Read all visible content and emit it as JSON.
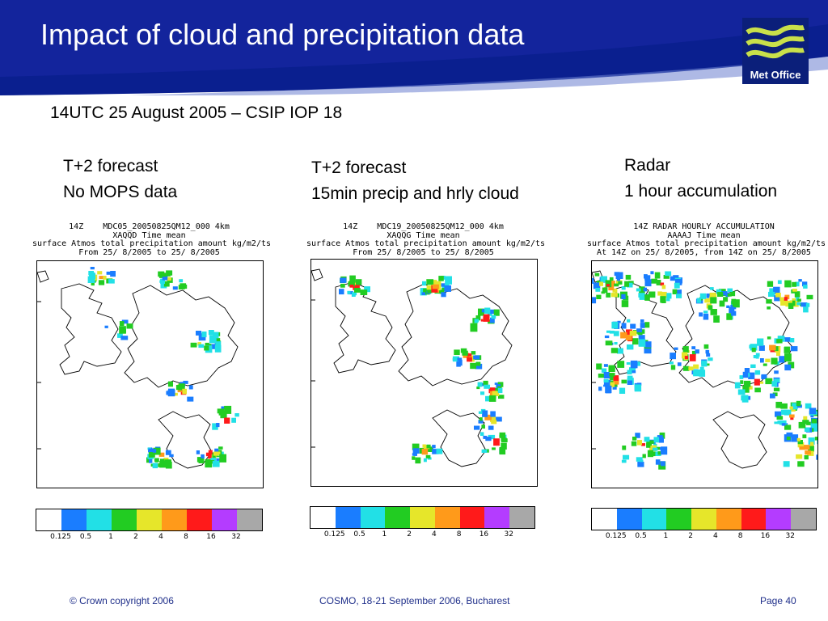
{
  "slide": {
    "title": "Impact of cloud and precipitation data",
    "subtitle": "14UTC 25 August 2005 – CSIP IOP 18",
    "logo_text": "Met Office"
  },
  "panels": [
    {
      "caption_line1": "T+2 forecast",
      "caption_line2": "No MOPS data",
      "header": [
        "14Z    MDC05_20050825QM12_000 4km",
        "XAQQD Time mean",
        "surface Atmos total precipitation amount kg/m2/ts",
        "From 25/ 8/2005 to 25/ 8/2005"
      ]
    },
    {
      "caption_line1": "T+2 forecast",
      "caption_line2": "15min precip and hrly cloud",
      "header": [
        "14Z    MDC19_20050825QM12_000 4km",
        "XAQQG Time mean",
        "surface Atmos total precipitation amount kg/m2/ts",
        "From 25/ 8/2005 to 25/ 8/2005"
      ]
    },
    {
      "caption_line1": "Radar",
      "caption_line2": "1 hour accumulation",
      "header": [
        "14Z RADAR HOURLY ACCUMULATION",
        "AAAAJ Time mean",
        "surface Atmos total precipitation amount kg/m2/ts",
        "At 14Z on 25/ 8/2005, from 14Z on 25/ 8/2005"
      ]
    }
  ],
  "colorbar": {
    "colors": [
      "#ffffff",
      "#1a7dff",
      "#22e0e6",
      "#22cc22",
      "#e6e62a",
      "#ff9a1a",
      "#ff1a1a",
      "#b43cff",
      "#a8a8a8"
    ],
    "labels": [
      "0.125",
      "0.5",
      "1",
      "2",
      "4",
      "8",
      "16",
      "32"
    ]
  },
  "footer": {
    "copyright": "© Crown copyright 2006",
    "event": "COSMO, 18-21 September 2006, Bucharest",
    "page": "Page 40"
  }
}
